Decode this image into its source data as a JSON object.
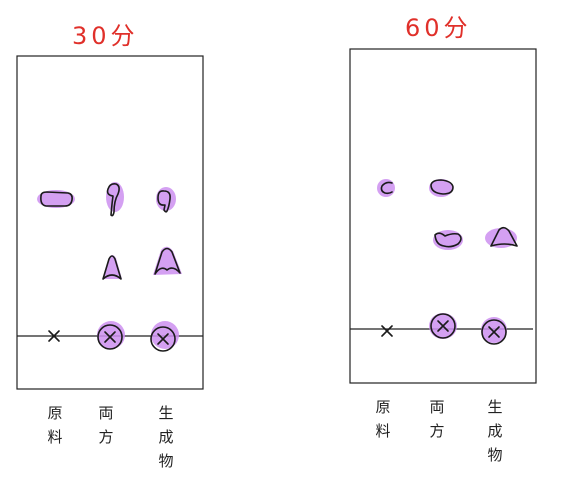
{
  "plates": [
    {
      "title": "30分",
      "lanes": [
        {
          "label_lines": [
            "原",
            "料"
          ]
        },
        {
          "label_lines": [
            "両",
            "方"
          ]
        },
        {
          "label_lines": [
            "生",
            "成",
            "物"
          ]
        }
      ]
    },
    {
      "title": "60分",
      "lanes": [
        {
          "label_lines": [
            "原",
            "料"
          ]
        },
        {
          "label_lines": [
            "両",
            "方"
          ]
        },
        {
          "label_lines": [
            "生",
            "成",
            "物"
          ]
        }
      ]
    }
  ],
  "colors": {
    "title": "#e0302a",
    "spot": "#cc8ff0",
    "ink": "#1b1b1b"
  }
}
